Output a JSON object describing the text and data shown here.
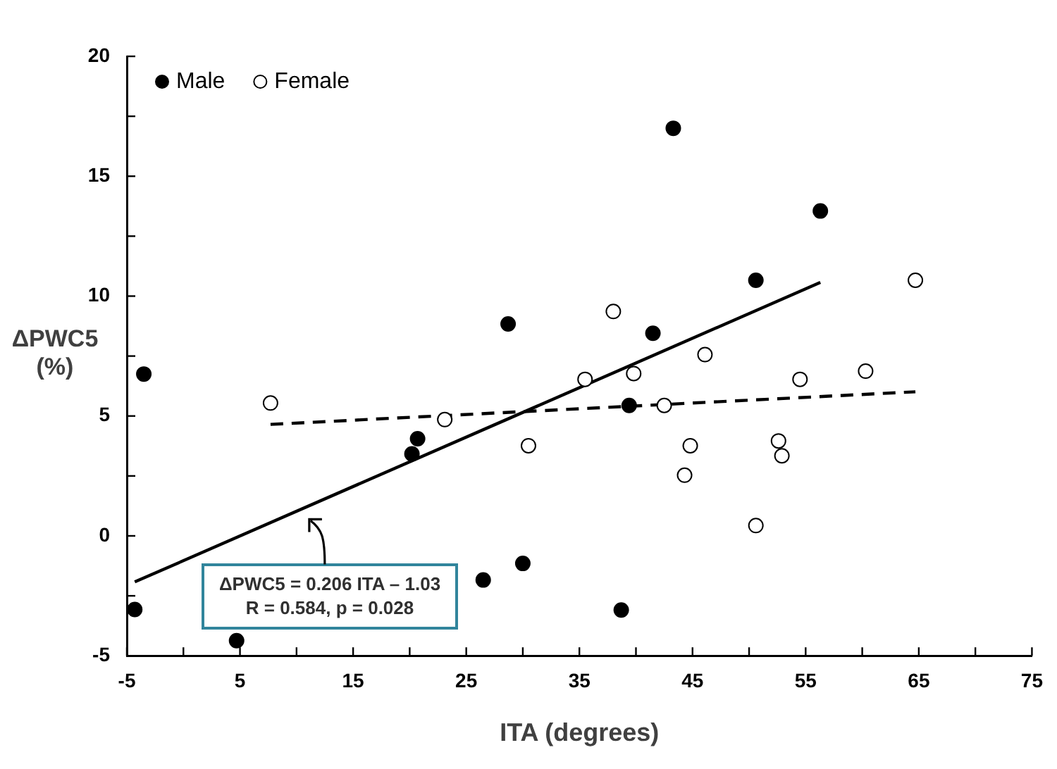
{
  "chart_data": {
    "type": "scatter",
    "xlabel": "ITA (degrees)",
    "ylabel": "ΔPWC5 (%)",
    "xlim": [
      -5,
      75
    ],
    "xticks": [
      -5,
      {
        "value": 0,
        "label": null
      },
      5,
      {
        "value": 10,
        "label": null
      },
      15,
      {
        "value": 20,
        "label": null
      },
      25,
      {
        "value": 30,
        "label": null
      },
      35,
      {
        "value": 40,
        "label": null
      },
      45,
      {
        "value": 50,
        "label": null
      },
      55,
      {
        "value": 60,
        "label": null
      },
      65,
      {
        "value": 70,
        "label": null
      },
      75
    ],
    "ylim": [
      -5,
      20
    ],
    "yticks": [
      -5,
      {
        "value": -2.5,
        "label": null
      },
      0,
      {
        "value": 2.5,
        "label": null
      },
      5,
      {
        "value": 7.5,
        "label": null
      },
      10,
      {
        "value": 12.5,
        "label": null
      },
      15,
      {
        "value": 17.5,
        "label": null
      },
      20
    ],
    "grid": false,
    "legend": "top left",
    "marker": "circle",
    "series": [
      {
        "name": "Male",
        "color": "#000000",
        "x": [
          -4.3,
          -3.5,
          4.7,
          20.2,
          20.7,
          28.7,
          26.5,
          30.0,
          56.3,
          50.6,
          41.5,
          39.4,
          38.7,
          43.3
        ],
        "values": [
          -3.07,
          6.75,
          -4.37,
          3.42,
          4.05,
          8.84,
          -1.84,
          -1.15,
          13.55,
          10.66,
          8.45,
          5.44,
          -3.09,
          17.0
        ]
      },
      {
        "name": "Female",
        "color": "#ffffff",
        "x": [
          7.7,
          23.1,
          30.5,
          35.5,
          38.0,
          39.8,
          46.1,
          42.5,
          44.8,
          44.3,
          54.5,
          60.3,
          64.7,
          52.6,
          52.9,
          50.6
        ],
        "values": [
          5.54,
          4.85,
          3.76,
          6.53,
          9.36,
          6.77,
          7.56,
          5.44,
          3.76,
          2.53,
          6.53,
          6.87,
          10.66,
          3.96,
          3.34,
          0.43
        ]
      },
      {
        "type": "line",
        "color": "#000000",
        "line_style": "solid",
        "marker": "none",
        "x": [
          -4.3,
          56.3
        ],
        "values": [
          -1.92,
          10.57
        ]
      },
      {
        "type": "line",
        "color": "#000000",
        "line_style": "dashed",
        "marker": "none",
        "x": [
          7.7,
          64.7
        ],
        "values": [
          4.65,
          6.01
        ]
      }
    ],
    "annotations": [
      "ΔPWC5 = 0.206 ITA – 1.03",
      "R = 0.584, p = 0.028"
    ]
  }
}
